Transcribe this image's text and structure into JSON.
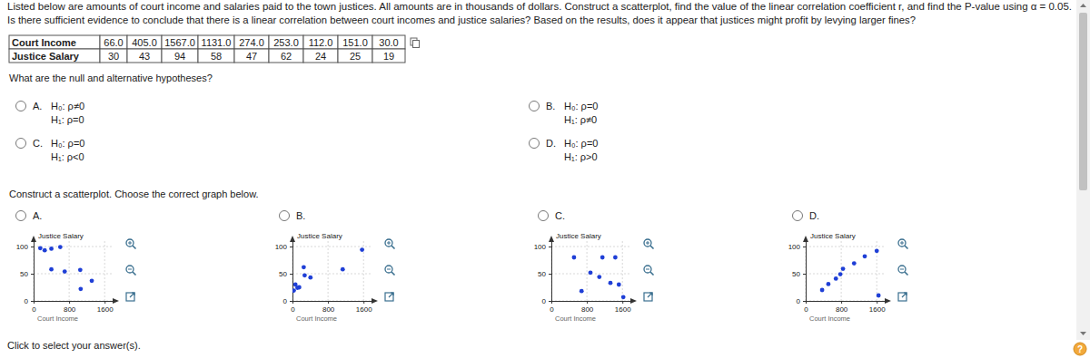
{
  "question": {
    "lines": [
      "Listed below are amounts of court income and salaries paid to the town justices. All amounts are in thousands of dollars. Construct a scatterplot, find the value of the linear correlation coefficient r, and find the P-value using α = 0.05.",
      "Is there sufficient evidence to conclude that there is a linear correlation between court incomes and justice salaries? Based on the results, does it appear that justices might profit by levying larger fines?"
    ]
  },
  "table": {
    "rows": [
      [
        "Court Income",
        "66.0",
        "405.0",
        "1567.0",
        "1131.0",
        "274.0",
        "253.0",
        "112.0",
        "151.0",
        "30.0"
      ],
      [
        "Justice Salary",
        "30",
        "43",
        "94",
        "58",
        "47",
        "62",
        "24",
        "25",
        "19"
      ]
    ]
  },
  "hypothesis_prompt": "What are the null and alternative hypotheses?",
  "hypothesis_options": [
    {
      "letter": "A.",
      "h0": "H₀: ρ≠0",
      "h1": "H₁: ρ=0"
    },
    {
      "letter": "B.",
      "h0": "H₀: ρ=0",
      "h1": "H₁: ρ≠0"
    },
    {
      "letter": "C.",
      "h0": "H₀: ρ=0",
      "h1": "H₁: ρ<0"
    },
    {
      "letter": "D.",
      "h0": "H₀: ρ=0",
      "h1": "H₁: ρ>0"
    }
  ],
  "scatter_prompt": "Construct a scatterplot. Choose the correct graph below.",
  "chart_data": [
    {
      "type": "scatter",
      "title": "A.",
      "x_label": "Court Income",
      "y_label": "Justice Salary",
      "x": [
        150,
        250,
        400,
        600,
        400,
        700,
        1050,
        1310,
        1060
      ],
      "values": [
        97,
        93,
        96,
        99,
        58,
        54,
        57,
        37,
        22
      ],
      "xlim": [
        0,
        1800
      ],
      "ylim": [
        0,
        110
      ],
      "xticks": [
        0,
        800,
        1600
      ],
      "yticks": [
        0,
        50,
        100
      ],
      "grid": true,
      "color": "#1f3fd6",
      "marker": "circle"
    },
    {
      "type": "scatter",
      "title": "B.",
      "x_label": "Court Income",
      "y_label": "Justice Salary",
      "x": [
        66,
        405,
        1567,
        1131,
        274,
        253,
        112,
        151,
        30
      ],
      "values": [
        30,
        43,
        94,
        58,
        47,
        62,
        24,
        25,
        19
      ],
      "xlim": [
        0,
        1800
      ],
      "ylim": [
        0,
        110
      ],
      "xticks": [
        0,
        800,
        1600
      ],
      "yticks": [
        0,
        50,
        100
      ],
      "grid": true,
      "color": "#1f3fd6",
      "marker": "circle"
    },
    {
      "type": "scatter",
      "title": "C.",
      "x_label": "Court Income",
      "y_label": "Justice Salary",
      "x": [
        510,
        1150,
        1440,
        880,
        1080,
        1330,
        1520,
        680,
        1620
      ],
      "values": [
        80,
        80,
        80,
        52,
        44,
        33,
        30,
        18,
        7
      ],
      "xlim": [
        0,
        1800
      ],
      "ylim": [
        0,
        110
      ],
      "xticks": [
        0,
        800,
        1600
      ],
      "yticks": [
        0,
        50,
        100
      ],
      "grid": true,
      "color": "#1f3fd6",
      "marker": "circle"
    },
    {
      "type": "scatter",
      "title": "D.",
      "x_label": "Court Income",
      "y_label": "Justice Salary",
      "x": [
        370,
        510,
        680,
        780,
        840,
        1090,
        1330,
        1600,
        1640
      ],
      "values": [
        20,
        31,
        41,
        49,
        59,
        69,
        82,
        92,
        10
      ],
      "xlim": [
        0,
        1800
      ],
      "ylim": [
        0,
        110
      ],
      "xticks": [
        0,
        800,
        1600
      ],
      "yticks": [
        0,
        50,
        100
      ],
      "grid": true,
      "color": "#1f3fd6",
      "marker": "circle"
    }
  ],
  "footer": "Click to select your answer(s).",
  "help": "?"
}
